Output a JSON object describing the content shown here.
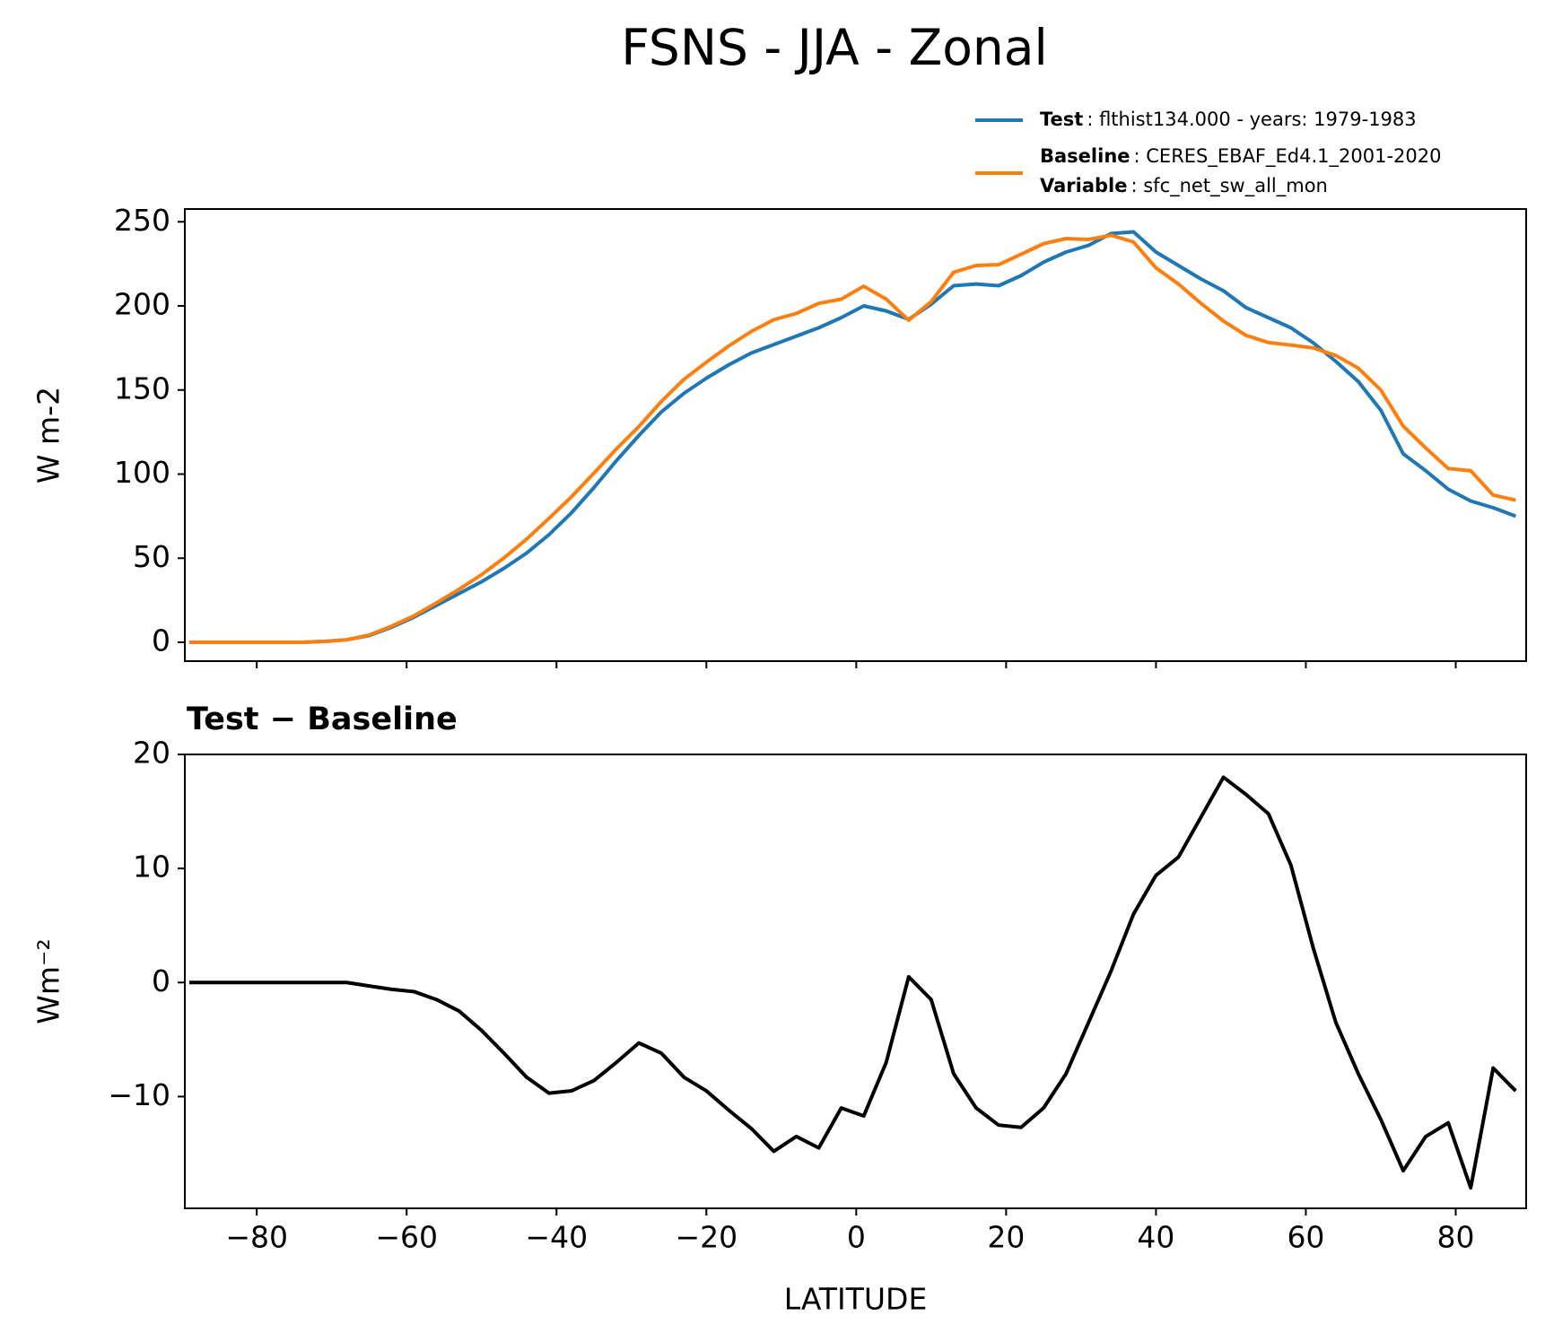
{
  "chart_data": [
    {
      "type": "line",
      "title": "FSNS - JJA - Zonal",
      "ylabel": "W m-2",
      "x": [
        -89,
        -86,
        -83,
        -80,
        -77,
        -74,
        -71,
        -68,
        -65,
        -62,
        -59,
        -56,
        -53,
        -50,
        -47,
        -44,
        -41,
        -38,
        -35,
        -32,
        -29,
        -26,
        -23,
        -20,
        -17,
        -14,
        -11,
        -8,
        -5,
        -2,
        1,
        4,
        7,
        10,
        13,
        16,
        19,
        22,
        25,
        28,
        31,
        34,
        37,
        40,
        43,
        46,
        49,
        52,
        55,
        58,
        61,
        64,
        67,
        70,
        73,
        76,
        79,
        82,
        85,
        88
      ],
      "series": [
        {
          "name": "Test",
          "description": ": flthist134.000 - years: 1979-1983",
          "color": "#1f77b4",
          "values": [
            0,
            0,
            0,
            0,
            0,
            0,
            0.5,
            1.5,
            4,
            9,
            15,
            22,
            29,
            36,
            44,
            53,
            64,
            77,
            92,
            108,
            123,
            137,
            148,
            157,
            165,
            172,
            177,
            182,
            187,
            193,
            200,
            197,
            192,
            201,
            212,
            213,
            212,
            218,
            226,
            232,
            236,
            243,
            244,
            232,
            224,
            216,
            209,
            199,
            193,
            187,
            178,
            167,
            155,
            138,
            112,
            102,
            91,
            84,
            80,
            75
          ]
        },
        {
          "name": "Baseline",
          "description": ": CERES_EBAF_Ed4.1_2001-2020",
          "color": "#ff7f0e",
          "values": [
            0,
            0,
            0,
            0,
            0,
            0,
            0.5,
            1.5,
            4.3,
            9.6,
            15.8,
            23.5,
            31.5,
            40.2,
            50.2,
            61.3,
            73.7,
            86.5,
            100.6,
            115,
            128.3,
            143.2,
            156.3,
            166.5,
            176.2,
            184.8,
            191.8,
            195.5,
            201.5,
            204,
            211.7,
            204,
            191.5,
            202.5,
            220,
            224,
            224.5,
            230.7,
            237,
            240,
            239.5,
            242,
            238,
            222.6,
            213,
            201.5,
            191,
            182.5,
            178.2,
            176.7,
            175,
            170.5,
            163,
            150,
            128.5,
            115.5,
            103.3,
            102,
            87.5,
            84.5
          ]
        }
      ],
      "legend_note": {
        "name": "Variable",
        "description": ": sfc_net_sw_all_mon"
      },
      "xlim": [
        -89.6,
        89.4
      ],
      "xticks": [
        -80,
        -60,
        -40,
        -20,
        0,
        20,
        40,
        60,
        80
      ],
      "show_xtick_labels": false,
      "ylim": [
        -11.2,
        257.6
      ],
      "yticks": [
        0,
        50,
        100,
        150,
        200,
        250
      ]
    },
    {
      "type": "line",
      "title": "Test − Baseline",
      "ylabel": "Wm⁻²",
      "xlabel": "LATITUDE",
      "x": [
        -89,
        -86,
        -83,
        -80,
        -77,
        -74,
        -71,
        -68,
        -65,
        -62,
        -59,
        -56,
        -53,
        -50,
        -47,
        -44,
        -41,
        -38,
        -35,
        -32,
        -29,
        -26,
        -23,
        -20,
        -17,
        -14,
        -11,
        -8,
        -5,
        -2,
        1,
        4,
        7,
        10,
        13,
        16,
        19,
        22,
        25,
        28,
        31,
        34,
        37,
        40,
        43,
        46,
        49,
        52,
        55,
        58,
        61,
        64,
        67,
        70,
        73,
        76,
        79,
        82,
        85,
        88
      ],
      "series": [
        {
          "color": "#000000",
          "values": [
            0,
            0,
            0,
            0,
            0,
            0,
            0,
            0,
            -0.3,
            -0.6,
            -0.8,
            -1.5,
            -2.5,
            -4.2,
            -6.2,
            -8.3,
            -9.7,
            -9.5,
            -8.6,
            -7,
            -5.3,
            -6.2,
            -8.3,
            -9.5,
            -11.2,
            -12.8,
            -14.8,
            -13.5,
            -14.5,
            -11,
            -11.7,
            -7,
            0.5,
            -1.5,
            -8,
            -11,
            -12.5,
            -12.7,
            -11,
            -8,
            -3.5,
            1,
            6,
            9.4,
            11,
            14.5,
            18,
            16.5,
            14.8,
            10.3,
            3,
            -3.5,
            -8,
            -12,
            -16.5,
            -13.5,
            -12.3,
            -18,
            -7.5,
            -9.5
          ]
        }
      ],
      "xlim": [
        -89.6,
        89.4
      ],
      "xticks": [
        {
          "value": -80,
          "label": "−80"
        },
        {
          "value": -60,
          "label": "−60"
        },
        {
          "value": -40,
          "label": "−40"
        },
        {
          "value": -20,
          "label": "−20"
        },
        0,
        20,
        40,
        60,
        80
      ],
      "show_xtick_labels": true,
      "ylim": [
        -19.8,
        20
      ],
      "yticks": [
        {
          "value": -10,
          "label": "−10"
        },
        0,
        10,
        20
      ]
    }
  ]
}
